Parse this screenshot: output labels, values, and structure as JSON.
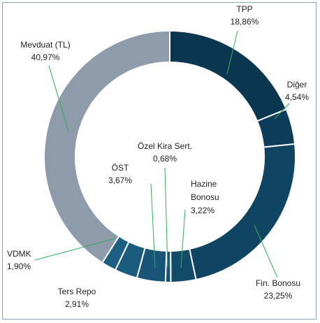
{
  "chart_data": {
    "type": "donut",
    "categories": [
      "TPP",
      "Diğer",
      "Fin. Bonosu",
      "Hazine Bonosu",
      "Özel Kira Sert.",
      "ÖST",
      "Ters Repo",
      "VDMK",
      "Mevduat (TL)"
    ],
    "values": [
      18.86,
      4.54,
      23.25,
      3.22,
      0.68,
      3.67,
      2.91,
      1.9,
      40.97
    ],
    "value_labels": [
      "18,86%",
      "4,54%",
      "23,25%",
      "3,22%",
      "0,68%",
      "3,67%",
      "2,91%",
      "1,90%",
      "40,97%"
    ],
    "colors": [
      "#0b3650",
      "#0d3d5a",
      "#0f4462",
      "#124a6a",
      "#175273",
      "#185577",
      "#1b5b7d",
      "#1d5f82",
      "#8d9bab"
    ]
  }
}
